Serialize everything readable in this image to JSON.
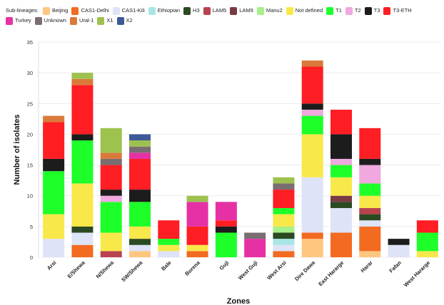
{
  "chart_data": {
    "type": "bar",
    "stacked": true,
    "title": "",
    "xlabel": "Zones",
    "ylabel": "Number of isolates",
    "ylim": [
      0,
      35
    ],
    "yticks": [
      0,
      5,
      10,
      15,
      20,
      25,
      30,
      35
    ],
    "grid": true,
    "legend_title": "Sub-lineages:",
    "legend_position": "top",
    "categories": [
      "Arsi",
      "E/Shewa",
      "N/Shewa",
      "SW/Shewa",
      "Bale",
      "Borena",
      "Guji",
      "West Guji",
      "West Arsi",
      "Dire Dawa",
      "East Hararge",
      "Harar",
      "Fafan",
      "West Hararge"
    ],
    "series": [
      {
        "name": "Beijing",
        "color": "#FFC680",
        "values": [
          0,
          0,
          0,
          1,
          0,
          0,
          0,
          0,
          0,
          3,
          0,
          1,
          0,
          0
        ]
      },
      {
        "name": "CAS1-Delhi",
        "color": "#F26B21",
        "values": [
          0,
          2,
          0,
          0,
          0,
          1,
          0,
          0,
          1,
          1,
          4,
          4,
          0,
          0
        ]
      },
      {
        "name": "CAS1-Kili",
        "color": "#DEE3F7",
        "values": [
          3,
          2,
          0,
          1,
          1,
          0,
          0,
          0,
          1,
          9,
          4,
          1,
          2,
          0
        ]
      },
      {
        "name": "Ethiopian",
        "color": "#A8E6E6",
        "values": [
          0,
          0,
          0,
          0,
          0,
          0,
          0,
          0,
          1,
          0,
          0,
          0,
          0,
          0
        ]
      },
      {
        "name": "H3",
        "color": "#2B4A22",
        "values": [
          0,
          1,
          0,
          1,
          0,
          0,
          0,
          0,
          1,
          0,
          1,
          1,
          0,
          0
        ]
      },
      {
        "name": "LAM5",
        "color": "#B8434F",
        "values": [
          0,
          0,
          1,
          0,
          0,
          0,
          0,
          0,
          0,
          0,
          0,
          1,
          0,
          0
        ]
      },
      {
        "name": "LAM9",
        "color": "#7A3A44",
        "values": [
          0,
          0,
          0,
          0,
          0,
          0,
          0,
          0,
          0,
          0,
          1,
          0,
          0,
          0
        ]
      },
      {
        "name": "Manu2",
        "color": "#A8F08A",
        "values": [
          0,
          0,
          0,
          0,
          0,
          0,
          0,
          0,
          1,
          0,
          0,
          0,
          0,
          0
        ]
      },
      {
        "name": "Not defined",
        "color": "#F8E84A",
        "values": [
          4,
          7,
          3,
          2,
          1,
          1,
          0,
          0,
          2,
          7,
          3,
          2,
          0,
          1
        ]
      },
      {
        "name": "T1",
        "color": "#1EFF2A",
        "values": [
          7,
          7,
          5,
          4,
          1,
          0,
          4,
          0,
          1,
          3,
          2,
          2,
          0,
          3
        ]
      },
      {
        "name": "T2",
        "color": "#F0A8DE",
        "values": [
          0,
          0,
          1,
          0,
          0,
          0,
          0,
          0,
          0,
          1,
          1,
          3,
          0,
          0
        ]
      },
      {
        "name": "T3",
        "color": "#1C1C1C",
        "values": [
          2,
          1,
          1,
          2,
          0,
          0,
          1,
          0,
          0,
          1,
          4,
          1,
          1,
          0
        ]
      },
      {
        "name": "T3-ETH",
        "color": "#FF1E23",
        "values": [
          6,
          8,
          4,
          5,
          3,
          3,
          1,
          0,
          3,
          6,
          4,
          5,
          0,
          2
        ]
      },
      {
        "name": "Turkey",
        "color": "#E631A4",
        "values": [
          0,
          0,
          0,
          1,
          0,
          4,
          3,
          3,
          0,
          0,
          0,
          0,
          0,
          0
        ]
      },
      {
        "name": "Unknown",
        "color": "#7A6E72",
        "values": [
          0,
          0,
          1,
          1,
          0,
          0,
          0,
          1,
          1,
          0,
          0,
          0,
          0,
          0
        ]
      },
      {
        "name": "Ural-1",
        "color": "#DA7A3A",
        "values": [
          1,
          1,
          1,
          0,
          0,
          0,
          0,
          0,
          0,
          1,
          0,
          0,
          0,
          0
        ]
      },
      {
        "name": "X1",
        "color": "#9DC24E",
        "values": [
          0,
          1,
          4,
          1,
          0,
          1,
          0,
          0,
          1,
          0,
          0,
          0,
          0,
          0
        ]
      },
      {
        "name": "X2",
        "color": "#3D5A96",
        "values": [
          0,
          0,
          0,
          1,
          0,
          0,
          0,
          0,
          0,
          0,
          0,
          0,
          0,
          0
        ]
      }
    ]
  }
}
